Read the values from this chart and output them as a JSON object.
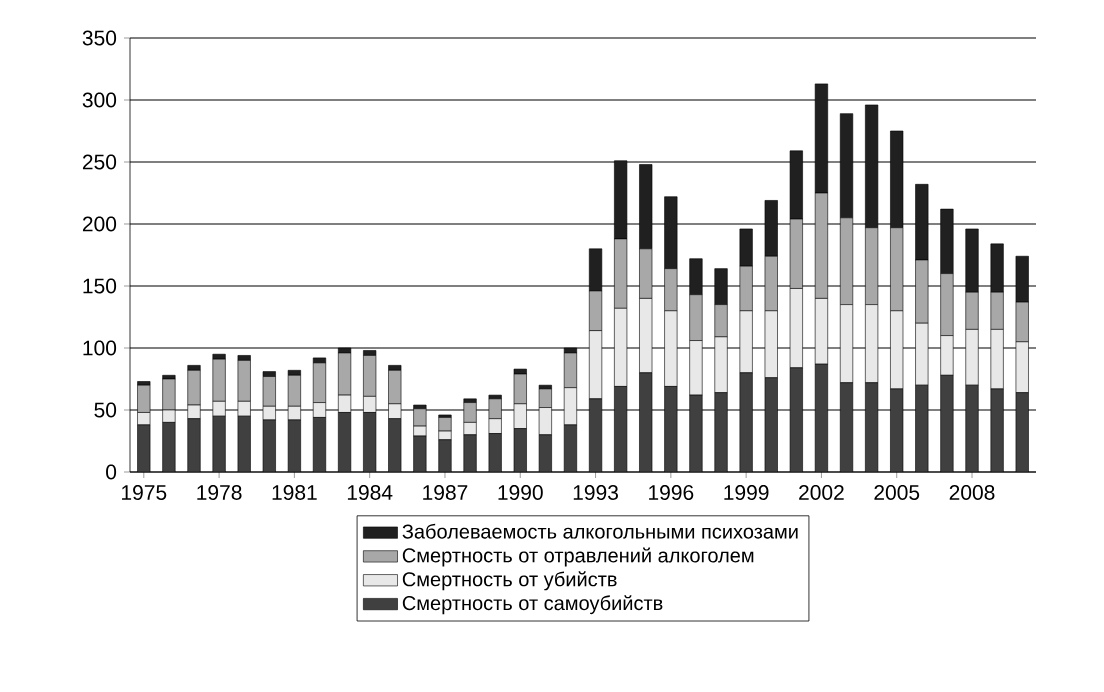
{
  "chart_data": {
    "type": "bar",
    "stacked": true,
    "grid": "y",
    "legend": "bottom",
    "categories": [
      "1975",
      null,
      null,
      "1978",
      null,
      null,
      "1981",
      null,
      null,
      "1984",
      null,
      null,
      "1987",
      null,
      null,
      "1990",
      null,
      null,
      "1993",
      null,
      null,
      "1996",
      null,
      null,
      "1999",
      null,
      null,
      "2002",
      null,
      null,
      "2005",
      null,
      null,
      "2008",
      null,
      null
    ],
    "ylim": [
      0,
      350
    ],
    "yticks": [
      0,
      50,
      100,
      150,
      200,
      250,
      300,
      350
    ],
    "series": [
      {
        "name": "Смертность от самоубийств",
        "color": "#404040",
        "values": [
          38,
          40,
          43,
          45,
          45,
          42,
          42,
          44,
          48,
          48,
          43,
          29,
          26,
          30,
          31,
          35,
          30,
          38,
          59,
          69,
          80,
          69,
          62,
          64,
          80,
          76,
          84,
          87,
          72,
          72,
          67,
          70,
          78,
          70,
          67,
          64
        ]
      },
      {
        "name": "Смертность от убийств",
        "color": "#e8e8e8",
        "values": [
          10,
          10,
          11,
          12,
          12,
          11,
          11,
          12,
          14,
          13,
          12,
          8,
          7,
          10,
          12,
          20,
          22,
          30,
          55,
          63,
          60,
          61,
          44,
          45,
          50,
          54,
          64,
          53,
          63,
          63,
          63,
          50,
          32,
          45,
          48,
          41
        ]
      },
      {
        "name": "Смертность от отравлений алкоголем",
        "color": "#a8a8a8",
        "values": [
          22,
          25,
          28,
          34,
          33,
          24,
          25,
          32,
          34,
          33,
          27,
          14,
          11,
          16,
          16,
          24,
          15,
          28,
          32,
          56,
          40,
          34,
          37,
          26,
          36,
          44,
          56,
          85,
          70,
          62,
          67,
          51,
          50,
          30,
          30,
          32
        ]
      },
      {
        "name": "Заболеваемость алкогольными психозами",
        "color": "#202020",
        "values": [
          3,
          3,
          4,
          4,
          4,
          4,
          4,
          4,
          4,
          4,
          4,
          3,
          2,
          3,
          3,
          4,
          3,
          4,
          34,
          63,
          68,
          58,
          29,
          29,
          30,
          45,
          55,
          88,
          84,
          99,
          78,
          61,
          52,
          51,
          39,
          37
        ]
      }
    ]
  }
}
